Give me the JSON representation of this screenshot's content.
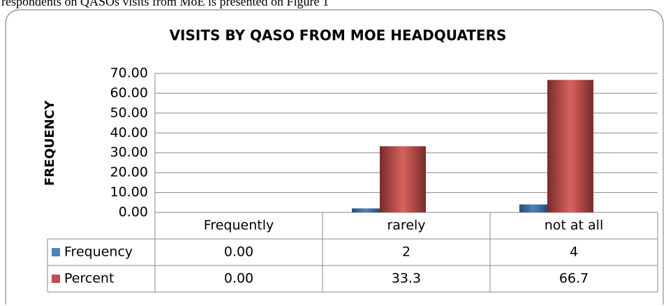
{
  "caption": "respondents on QASOs visits from MoE is presented on Figure 1",
  "chart_data": {
    "type": "bar",
    "title": "VISITS BY QASO FROM MOE HEADQUATERS",
    "y_label": "FREQUENCY",
    "categories": [
      "Frequently",
      "rarely",
      "not at all"
    ],
    "series": [
      {
        "name": "Frequency",
        "color": "#4f81bd",
        "values": [
          0,
          2,
          4
        ],
        "value_labels": [
          "0.00",
          "2",
          "4"
        ]
      },
      {
        "name": "Percent",
        "color": "#c0504d",
        "values": [
          0,
          33.3,
          66.7
        ],
        "value_labels": [
          "0.00",
          "33.3",
          "66.7"
        ]
      }
    ],
    "ylim": [
      0,
      70
    ],
    "yticks": [
      {
        "value": 0,
        "label": "0.00"
      },
      {
        "value": 10,
        "label": "10.00"
      },
      {
        "value": 20,
        "label": "20.00"
      },
      {
        "value": 30,
        "label": "30.00"
      },
      {
        "value": 40,
        "label": "40.00"
      },
      {
        "value": 50,
        "label": "50.00"
      },
      {
        "value": 60,
        "label": "60.00"
      },
      {
        "value": 70,
        "label": "70.00"
      }
    ],
    "grid": true,
    "data_table": true
  }
}
